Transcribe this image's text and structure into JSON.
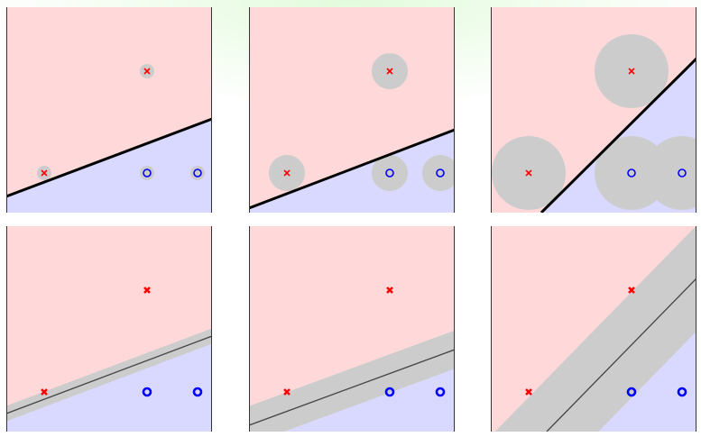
{
  "colors": {
    "positive_region": "#ffd9d9",
    "negative_region": "#d9d9ff",
    "margin_gray": "#cccccc",
    "boundary": "#000000",
    "cross_marker": "#ff0000",
    "circle_marker": "#0000ff",
    "panel_border": "#333333"
  },
  "points": [
    {
      "class": "x",
      "marker": "cross"
    },
    {
      "class": "x",
      "marker": "cross"
    },
    {
      "class": "o",
      "marker": "circle"
    },
    {
      "class": "o",
      "marker": "circle"
    }
  ],
  "panels": [
    {
      "row": 1,
      "style": "point-disks",
      "margin_size": "small"
    },
    {
      "row": 1,
      "style": "point-disks",
      "margin_size": "medium"
    },
    {
      "row": 1,
      "style": "point-disks",
      "margin_size": "large"
    },
    {
      "row": 2,
      "style": "margin-band",
      "margin_size": "small"
    },
    {
      "row": 2,
      "style": "margin-band",
      "margin_size": "medium"
    },
    {
      "row": 2,
      "style": "margin-band",
      "margin_size": "large"
    }
  ]
}
